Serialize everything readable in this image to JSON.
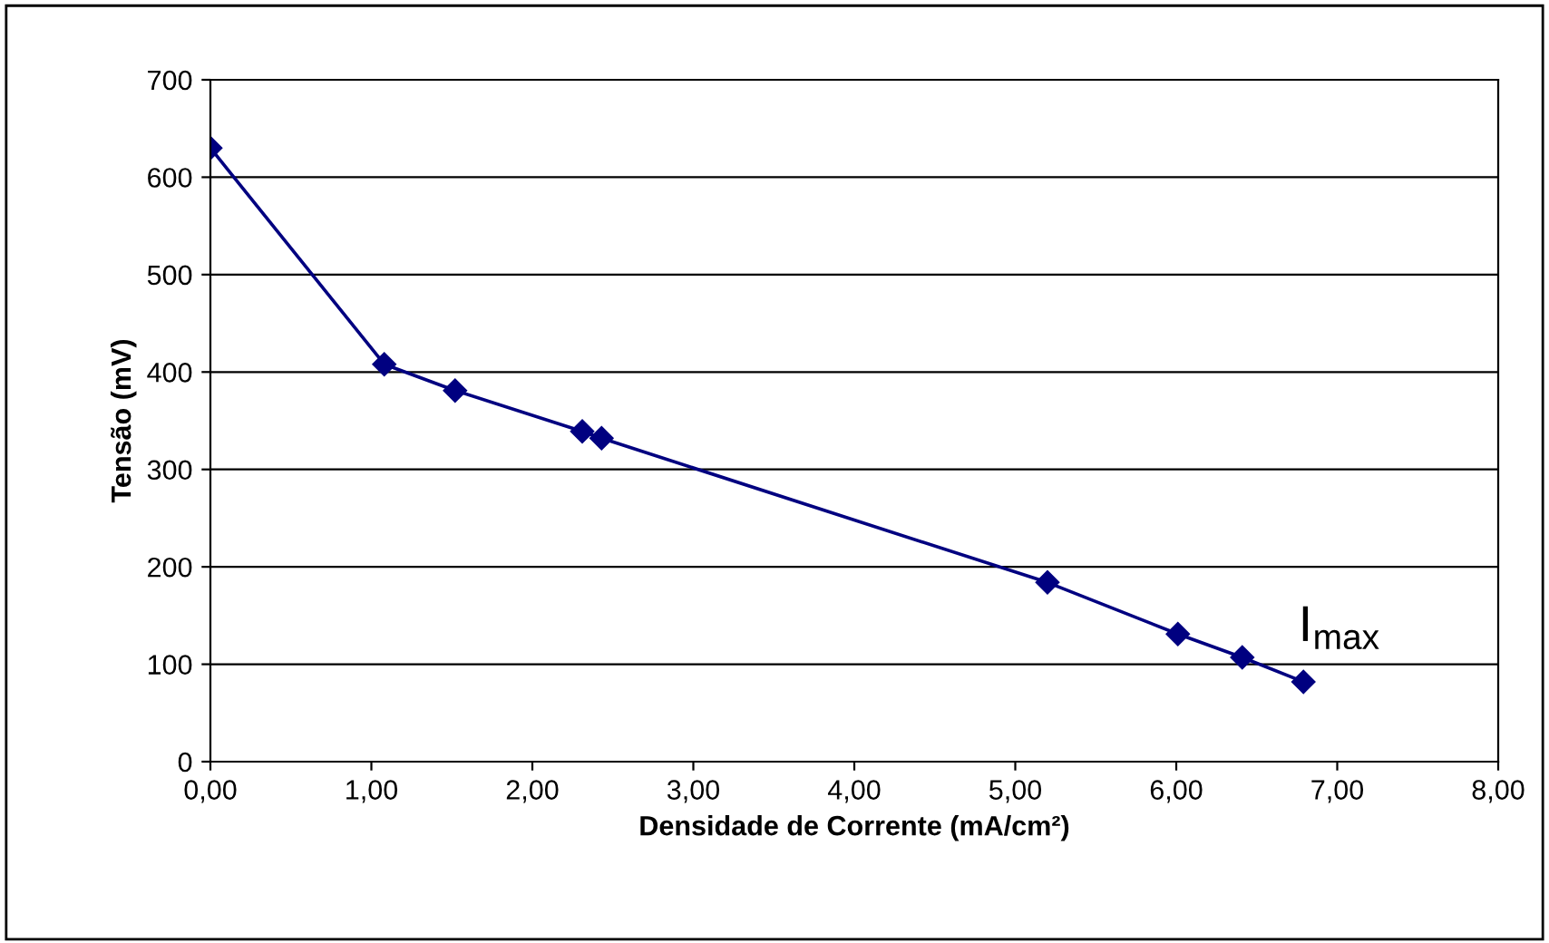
{
  "chart_data": {
    "type": "line",
    "xlabel": "Densidade de Corrente (mA/cm²)",
    "ylabel": "Tensão (mV)",
    "x": [
      0,
      1.08,
      1.52,
      2.31,
      2.43,
      5.2,
      6.01,
      6.41,
      6.79
    ],
    "series": [
      {
        "color": "#000080",
        "values": [
          630,
          408,
          381,
          339,
          332,
          184,
          131,
          107,
          82
        ]
      }
    ],
    "xlim": [
      0,
      8
    ],
    "ylim": [
      0,
      700
    ],
    "xticks": [
      {
        "value": 0,
        "label": "0,00"
      },
      {
        "value": 1,
        "label": "1,00"
      },
      {
        "value": 2,
        "label": "2,00"
      },
      {
        "value": 3,
        "label": "3,00"
      },
      {
        "value": 4,
        "label": "4,00"
      },
      {
        "value": 5,
        "label": "5,00"
      },
      {
        "value": 6,
        "label": "6,00"
      },
      {
        "value": 7,
        "label": "7,00"
      },
      {
        "value": 8,
        "label": "8,00"
      }
    ],
    "yticks": [
      0,
      100,
      200,
      300,
      400,
      500,
      600,
      700
    ],
    "annotations": [
      {
        "text": "I$_{max}$",
        "x": 6.79,
        "y": 82
      }
    ],
    "grid": "y",
    "marker": "diamond",
    "line_style": "solid",
    "legend": false
  }
}
